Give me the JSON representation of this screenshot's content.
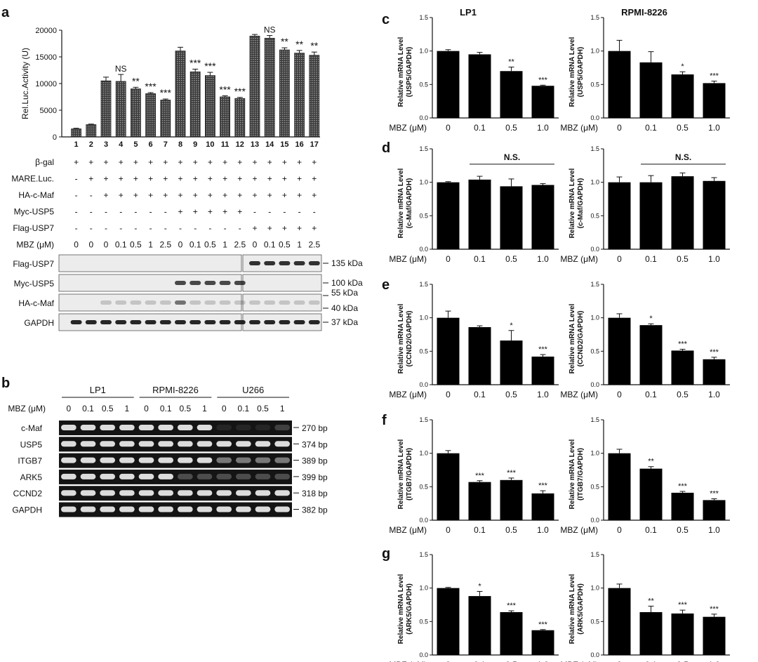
{
  "chart_data": [
    {
      "panel": "a",
      "type": "bar",
      "ylabel": "Rel.Luc.Activity (U)",
      "ylim": [
        0,
        20000
      ],
      "yticks": [
        0,
        5000,
        10000,
        15000,
        20000
      ],
      "categories": [
        "1",
        "2",
        "3",
        "4",
        "5",
        "6",
        "7",
        "8",
        "9",
        "10",
        "11",
        "12",
        "13",
        "14",
        "15",
        "16",
        "17"
      ],
      "values": [
        1500,
        2300,
        10500,
        10400,
        9000,
        8100,
        6900,
        16100,
        12200,
        11500,
        7500,
        7200,
        18900,
        18500,
        16300,
        15700,
        15300
      ],
      "errors": [
        120,
        100,
        700,
        1300,
        300,
        200,
        200,
        700,
        500,
        600,
        200,
        200,
        300,
        500,
        400,
        500,
        600
      ],
      "significance": [
        "",
        "",
        "",
        "NS",
        "**",
        "***",
        "***",
        "",
        "***",
        "***",
        "***",
        "***",
        "",
        "NS",
        "**",
        "**",
        "**"
      ],
      "conditions": [
        {
          "label": "β-gal",
          "values": [
            "+",
            "+",
            "+",
            "+",
            "+",
            "+",
            "+",
            "+",
            "+",
            "+",
            "+",
            "+",
            "+",
            "+",
            "+",
            "+",
            "+"
          ]
        },
        {
          "label": "MARE.Luc.",
          "values": [
            "-",
            "+",
            "+",
            "+",
            "+",
            "+",
            "+",
            "+",
            "+",
            "+",
            "+",
            "+",
            "+",
            "+",
            "+",
            "+",
            "+"
          ]
        },
        {
          "label": "HA-c-Maf",
          "values": [
            "-",
            "-",
            "+",
            "+",
            "+",
            "+",
            "+",
            "+",
            "+",
            "+",
            "+",
            "+",
            "+",
            "+",
            "+",
            "+",
            "+"
          ]
        },
        {
          "label": "Myc-USP5",
          "values": [
            "-",
            "-",
            "-",
            "-",
            "-",
            "-",
            "-",
            "+",
            "+",
            "+",
            "+",
            "+",
            "-",
            "-",
            "-",
            "-",
            "-"
          ]
        },
        {
          "label": "Flag-USP7",
          "values": [
            "-",
            "-",
            "-",
            "-",
            "-",
            "-",
            "-",
            "-",
            "-",
            "-",
            "-",
            "-",
            "+",
            "+",
            "+",
            "+",
            "+"
          ]
        },
        {
          "label": "MBZ (μM)",
          "values": [
            "0",
            "0",
            "0",
            "0.1",
            "0.5",
            "1",
            "2.5",
            "0",
            "0.1",
            "0.5",
            "1",
            "2.5",
            "0",
            "0.1",
            "0.5",
            "1",
            "2.5"
          ]
        }
      ],
      "blots": [
        {
          "label": "Flag-USP7",
          "size": "135 kDa"
        },
        {
          "label": "Myc-USP5",
          "size": "100 kDa"
        },
        {
          "label": "HA-c-Maf",
          "sizes": [
            "55 kDa",
            "40 kDa"
          ]
        },
        {
          "label": "GAPDH",
          "size": "37 kDa"
        }
      ]
    },
    {
      "panel": "b",
      "type": "table",
      "cell_lines": [
        "LP1",
        "RPMI-8226",
        "U266"
      ],
      "mbz_label": "MBZ (μM)",
      "mbz_doses": [
        "0",
        "0.1",
        "0.5",
        "1"
      ],
      "gels": [
        {
          "label": "c-Maf",
          "size": "270 bp"
        },
        {
          "label": "USP5",
          "size": "374 bp"
        },
        {
          "label": "ITGB7",
          "size": "389 bp"
        },
        {
          "label": "ARK5",
          "size": "399 bp"
        },
        {
          "label": "CCND2",
          "size": "318 bp"
        },
        {
          "label": "GAPDH",
          "size": "382 bp"
        }
      ]
    },
    {
      "panel": "c-g",
      "type": "bar",
      "column_titles": [
        "LP1",
        "RPMI-8226"
      ],
      "ylabel": "Relative mRNA Level",
      "xlabel": "MBZ (μM)",
      "categories": [
        "0",
        "0.1",
        "0.5",
        "1.0"
      ],
      "ylim": [
        0,
        1.5
      ],
      "yticks": [
        "0.0",
        "0.5",
        "1.0",
        "1.5"
      ],
      "rows": [
        {
          "panel": "c",
          "ylabel2": "(USP5/GAPDH)",
          "span": "",
          "LP1": {
            "values": [
              1.0,
              0.95,
              0.7,
              0.48
            ],
            "errors": [
              0.02,
              0.03,
              0.06,
              0.01
            ],
            "sig": [
              "",
              "",
              "**",
              "***"
            ]
          },
          "RPMI-8226": {
            "values": [
              1.0,
              0.83,
              0.65,
              0.52
            ],
            "errors": [
              0.16,
              0.16,
              0.04,
              0.03
            ],
            "sig": [
              "",
              "",
              "*",
              "***"
            ]
          }
        },
        {
          "panel": "d",
          "ylabel2": "(c-Maf/GAPDH)",
          "span": "N.S.",
          "LP1": {
            "values": [
              1.0,
              1.04,
              0.94,
              0.96
            ],
            "errors": [
              0.01,
              0.05,
              0.11,
              0.02
            ],
            "sig": [
              "",
              "",
              "",
              ""
            ]
          },
          "RPMI-8226": {
            "values": [
              1.0,
              1.0,
              1.09,
              1.02
            ],
            "errors": [
              0.08,
              0.1,
              0.05,
              0.05
            ],
            "sig": [
              "",
              "",
              "",
              ""
            ]
          }
        },
        {
          "panel": "e",
          "ylabel2": "(CCND2/GAPDH)",
          "span": "",
          "LP1": {
            "values": [
              1.0,
              0.86,
              0.66,
              0.42
            ],
            "errors": [
              0.1,
              0.02,
              0.15,
              0.03
            ],
            "sig": [
              "",
              "",
              "*",
              "***"
            ]
          },
          "RPMI-8226": {
            "values": [
              1.0,
              0.89,
              0.51,
              0.38
            ],
            "errors": [
              0.06,
              0.02,
              0.02,
              0.03
            ],
            "sig": [
              "",
              "*",
              "***",
              "***"
            ]
          }
        },
        {
          "panel": "f",
          "ylabel2": "(ITGB7/GAPDH)",
          "span": "",
          "LP1": {
            "values": [
              1.0,
              0.57,
              0.6,
              0.4
            ],
            "errors": [
              0.04,
              0.02,
              0.03,
              0.04
            ],
            "sig": [
              "",
              "***",
              "***",
              "***"
            ]
          },
          "RPMI-8226": {
            "values": [
              1.0,
              0.77,
              0.41,
              0.3
            ],
            "errors": [
              0.06,
              0.03,
              0.02,
              0.02
            ],
            "sig": [
              "",
              "**",
              "***",
              "***"
            ]
          }
        },
        {
          "panel": "g",
          "ylabel2": "(ARK5/GAPDH)",
          "span": "",
          "LP1": {
            "values": [
              1.0,
              0.88,
              0.64,
              0.37
            ],
            "errors": [
              0.01,
              0.07,
              0.02,
              0.01
            ],
            "sig": [
              "",
              "*",
              "***",
              "***"
            ]
          },
          "RPMI-8226": {
            "values": [
              1.0,
              0.64,
              0.62,
              0.57
            ],
            "errors": [
              0.06,
              0.09,
              0.05,
              0.04
            ],
            "sig": [
              "",
              "**",
              "***",
              "***"
            ]
          }
        }
      ]
    }
  ]
}
